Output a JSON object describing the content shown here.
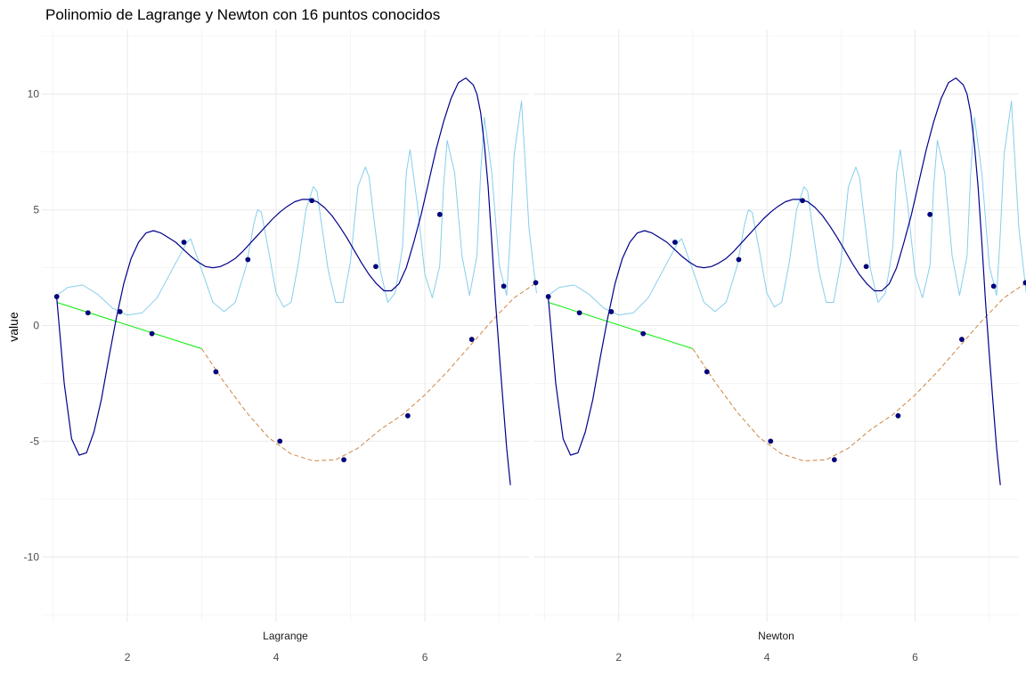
{
  "chart_data": {
    "type": "line",
    "title": "Polinomio de Lagrange y Newton con 16 puntos conocidos",
    "ylabel": "value",
    "xlim": [
      0.85,
      7.4
    ],
    "ylim": [
      -12.8,
      12.8
    ],
    "x_ticks": [
      2,
      4,
      6
    ],
    "y_ticks": [
      10,
      5,
      0,
      -5,
      -10
    ],
    "y_tick_labels": [
      "10",
      "5",
      "0",
      "-5",
      "-10"
    ],
    "grid": true,
    "legend": "none",
    "facets": [
      {
        "label": "Lagrange"
      },
      {
        "label": "Newton"
      }
    ],
    "colors": {
      "polynomial": "#00008b",
      "sine_function": "#87ceeb",
      "segment_linear": "#00ee00",
      "segment_curve": "#cd853f",
      "points": "#00008b"
    },
    "points": {
      "x": [
        1.05,
        1.47,
        1.9,
        2.33,
        2.76,
        3.19,
        3.62,
        4.05,
        4.48,
        4.91,
        5.34,
        5.77,
        6.2,
        6.63,
        7.06,
        7.49
      ],
      "y": [
        1.25,
        0.55,
        0.6,
        -0.35,
        3.6,
        -2.0,
        2.85,
        -5.0,
        5.4,
        -5.8,
        2.55,
        -3.9,
        4.8,
        -0.6,
        1.7,
        1.85
      ]
    },
    "series": [
      {
        "name": "polynomial",
        "x": [
          1.05,
          1.15,
          1.25,
          1.35,
          1.45,
          1.55,
          1.65,
          1.75,
          1.85,
          1.95,
          2.05,
          2.15,
          2.25,
          2.35,
          2.45,
          2.55,
          2.65,
          2.75,
          2.85,
          2.95,
          3.05,
          3.15,
          3.25,
          3.35,
          3.45,
          3.55,
          3.65,
          3.75,
          3.85,
          3.95,
          4.05,
          4.15,
          4.25,
          4.35,
          4.45,
          4.55,
          4.65,
          4.75,
          4.85,
          4.95,
          5.05,
          5.15,
          5.25,
          5.35,
          5.45,
          5.55,
          5.65,
          5.75,
          5.85,
          5.95,
          6.05,
          6.15,
          6.25,
          6.35,
          6.45,
          6.55,
          6.65,
          6.7,
          6.75,
          6.8,
          6.85,
          6.9,
          6.95,
          7.0,
          7.05,
          7.1,
          7.15
        ],
        "y": [
          1.2,
          -2.5,
          -4.9,
          -5.6,
          -5.5,
          -4.6,
          -3.2,
          -1.4,
          0.3,
          1.8,
          2.9,
          3.6,
          4.0,
          4.1,
          4.0,
          3.8,
          3.6,
          3.3,
          3.0,
          2.75,
          2.55,
          2.5,
          2.55,
          2.7,
          2.9,
          3.2,
          3.55,
          3.9,
          4.25,
          4.6,
          4.9,
          5.15,
          5.35,
          5.45,
          5.45,
          5.35,
          5.1,
          4.75,
          4.3,
          3.8,
          3.25,
          2.7,
          2.2,
          1.8,
          1.5,
          1.5,
          1.8,
          2.5,
          3.6,
          4.8,
          6.2,
          7.6,
          8.8,
          9.8,
          10.5,
          10.7,
          10.4,
          10.0,
          9.2,
          7.8,
          6.0,
          3.6,
          1.0,
          -1.2,
          -3.3,
          -5.3,
          -6.9
        ]
      },
      {
        "name": "sine_function",
        "x": [
          1.05,
          1.2,
          1.4,
          1.6,
          1.8,
          2.0,
          2.2,
          2.4,
          2.6,
          2.75,
          2.8,
          2.85,
          3.0,
          3.15,
          3.3,
          3.45,
          3.6,
          3.7,
          3.75,
          3.8,
          3.9,
          4.0,
          4.1,
          4.2,
          4.3,
          4.4,
          4.5,
          4.55,
          4.6,
          4.7,
          4.8,
          4.9,
          5.0,
          5.1,
          5.2,
          5.25,
          5.3,
          5.4,
          5.5,
          5.6,
          5.7,
          5.75,
          5.8,
          5.9,
          6.0,
          6.1,
          6.2,
          6.25,
          6.3,
          6.4,
          6.5,
          6.6,
          6.7,
          6.75,
          6.8,
          6.9,
          7.0,
          7.1,
          7.15,
          7.2,
          7.3,
          7.4,
          7.5
        ],
        "y": [
          1.3,
          1.65,
          1.75,
          1.35,
          0.75,
          0.45,
          0.55,
          1.2,
          2.4,
          3.3,
          3.6,
          3.75,
          2.4,
          1.0,
          0.6,
          1.0,
          2.6,
          4.4,
          5.0,
          4.9,
          3.2,
          1.4,
          0.8,
          1.0,
          2.7,
          5.0,
          6.0,
          5.8,
          4.6,
          2.4,
          1.0,
          1.0,
          2.8,
          6.0,
          6.85,
          6.4,
          5.0,
          2.4,
          1.0,
          1.4,
          3.4,
          6.6,
          7.6,
          5.2,
          2.2,
          1.2,
          2.6,
          6.0,
          8.0,
          6.6,
          3.0,
          1.3,
          3.0,
          6.6,
          9.0,
          6.6,
          2.6,
          1.3,
          4.0,
          7.4,
          9.7,
          4.2,
          1.4
        ]
      },
      {
        "name": "segment_linear",
        "x": [
          1.05,
          3.0
        ],
        "y": [
          1.0,
          -1.0
        ]
      },
      {
        "name": "segment_curve",
        "x": [
          3.0,
          3.3,
          3.6,
          3.9,
          4.2,
          4.5,
          4.8,
          5.1,
          5.4,
          5.7,
          6.0,
          6.3,
          6.6,
          6.9,
          7.2,
          7.5
        ],
        "y": [
          -1.0,
          -2.45,
          -3.75,
          -4.85,
          -5.55,
          -5.85,
          -5.8,
          -5.3,
          -4.5,
          -3.85,
          -3.0,
          -2.0,
          -0.9,
          0.2,
          1.2,
          1.85
        ]
      }
    ]
  }
}
